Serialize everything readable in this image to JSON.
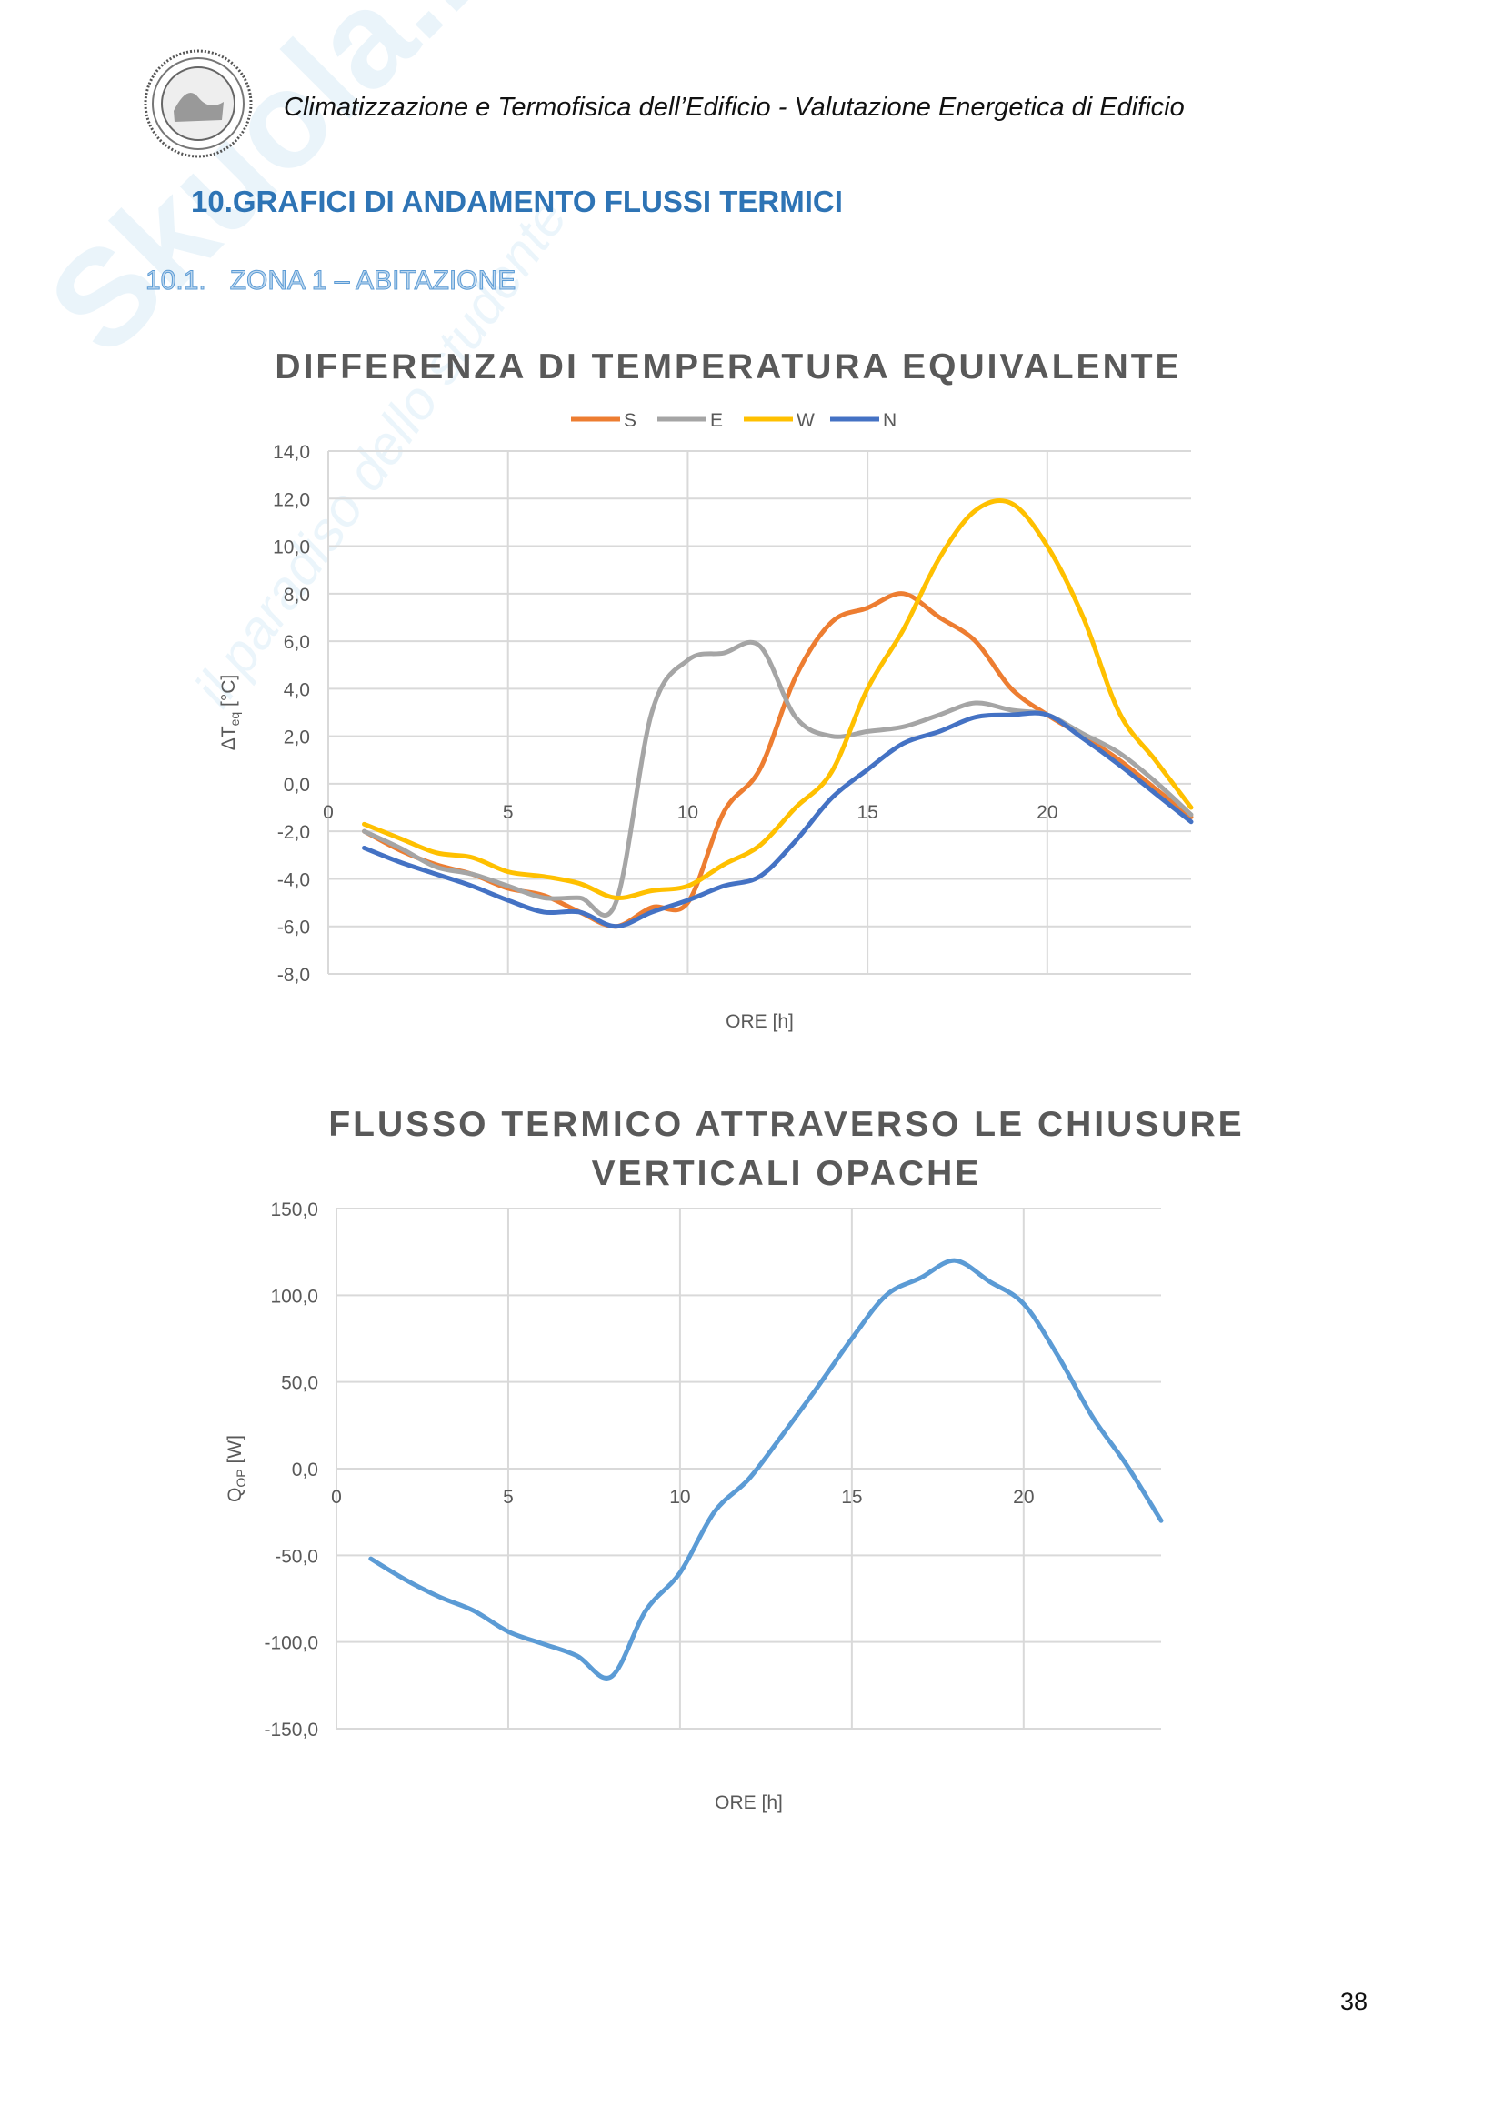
{
  "header": {
    "text": "Climatizzazione e Termofisica dell’Edificio - Valutazione Energetica di Edificio",
    "logo_icon": "university-seal-icon"
  },
  "watermark": {
    "text": "Skuola.net",
    "tagline": "il paradiso dello studente"
  },
  "section_title": "10.GRAFICI DI ANDAMENTO FLUSSI TERMICI",
  "subsection": {
    "number": "10.1.",
    "title": "ZONA 1 – ABITAZIONE"
  },
  "page_number": "38",
  "colors": {
    "S": "#ed7d31",
    "E": "#a5a5a5",
    "W": "#ffc000",
    "N": "#4472c4",
    "Q": "#5b9bd5",
    "grid": "#d9d9d9",
    "title": "#595959"
  },
  "chart_data": [
    {
      "type": "line",
      "title": "DIFFERENZA DI TEMPERATURA EQUIVALENTE",
      "xlabel": "ORE [h]",
      "ylabel": "ΔTeq [°C]",
      "ylabel_main": "ΔT",
      "ylabel_sub": "eq",
      "ylabel_unit": "[°C]",
      "xlim": [
        0,
        24
      ],
      "ylim": [
        -8,
        14
      ],
      "xticks": [
        0,
        5,
        10,
        15,
        20
      ],
      "yticks": [
        "14,0",
        "12,0",
        "10,0",
        "8,0",
        "6,0",
        "4,0",
        "2,0",
        "0,0",
        "-2,0",
        "-4,0",
        "-6,0",
        "-8,0"
      ],
      "grid": true,
      "legend": "top",
      "x": [
        1,
        2,
        3,
        4,
        5,
        6,
        7,
        8,
        9,
        10,
        11,
        12,
        13,
        14,
        15,
        16,
        17,
        18,
        19,
        20,
        21,
        22,
        23,
        24
      ],
      "series": [
        {
          "name": "S",
          "values": [
            -2.0,
            -2.8,
            -3.4,
            -3.8,
            -4.4,
            -4.7,
            -5.4,
            -6.0,
            -5.2,
            -5.0,
            -1.2,
            0.6,
            4.5,
            6.8,
            7.4,
            8.0,
            7.0,
            6.0,
            4.0,
            2.9,
            2.0,
            1.0,
            -0.2,
            -1.4
          ]
        },
        {
          "name": "E",
          "values": [
            -2.0,
            -2.7,
            -3.5,
            -3.8,
            -4.3,
            -4.8,
            -4.8,
            -5.0,
            3.0,
            5.2,
            5.5,
            5.8,
            2.8,
            2.0,
            2.2,
            2.4,
            2.9,
            3.4,
            3.1,
            2.9,
            2.1,
            1.3,
            0.1,
            -1.3
          ]
        },
        {
          "name": "W",
          "values": [
            -1.7,
            -2.3,
            -2.9,
            -3.1,
            -3.7,
            -3.9,
            -4.2,
            -4.8,
            -4.5,
            -4.3,
            -3.4,
            -2.6,
            -1.0,
            0.5,
            4.0,
            6.5,
            9.5,
            11.5,
            11.8,
            10.0,
            7.0,
            3.0,
            1.0,
            -1.0
          ]
        },
        {
          "name": "N",
          "values": [
            -2.7,
            -3.3,
            -3.8,
            -4.3,
            -4.9,
            -5.4,
            -5.4,
            -6.0,
            -5.4,
            -4.9,
            -4.3,
            -3.9,
            -2.4,
            -0.6,
            0.6,
            1.7,
            2.2,
            2.8,
            2.9,
            2.9,
            1.9,
            0.8,
            -0.4,
            -1.6
          ]
        }
      ]
    },
    {
      "type": "line",
      "title": "FLUSSO TERMICO ATTRAVERSO LE CHIUSURE VERTICALI OPACHE",
      "title_lines": [
        "FLUSSO TERMICO ATTRAVERSO LE CHIUSURE",
        "VERTICALI OPACHE"
      ],
      "xlabel": "ORE [h]",
      "ylabel": "QOP [W]",
      "ylabel_main": "Q",
      "ylabel_sub": "OP",
      "ylabel_unit": "[W]",
      "xlim": [
        0,
        24
      ],
      "ylim": [
        -150,
        150
      ],
      "xticks": [
        0,
        5,
        10,
        15,
        20
      ],
      "yticks": [
        "150,0",
        "100,0",
        "50,0",
        "0,0",
        "-50,0",
        "-100,0",
        "-150,0"
      ],
      "grid": true,
      "legend": "none",
      "x": [
        1,
        2,
        3,
        4,
        5,
        6,
        7,
        8,
        9,
        10,
        11,
        12,
        13,
        14,
        15,
        16,
        17,
        18,
        19,
        20,
        21,
        22,
        23,
        24
      ],
      "series": [
        {
          "name": "Q",
          "values": [
            -52,
            -64,
            -74,
            -82,
            -94,
            -101,
            -108,
            -120,
            -82,
            -60,
            -25,
            -6,
            20,
            47,
            75,
            100,
            110,
            120,
            108,
            95,
            65,
            30,
            2,
            -30
          ]
        }
      ]
    }
  ]
}
